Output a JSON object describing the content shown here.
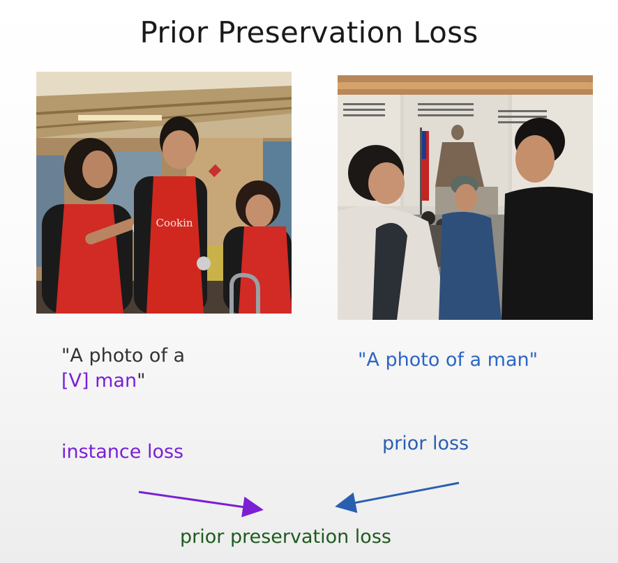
{
  "title": "Prior Preservation Loss",
  "left_caption": {
    "open_quote": "\"A photo of a",
    "token": "[V] man",
    "close_quote": "\""
  },
  "right_caption": "\"A photo of a man\"",
  "labels": {
    "instance_loss": "instance loss",
    "prior_loss": "prior loss",
    "prior_preservation_loss": "prior preservation loss"
  },
  "colors": {
    "instance": "#7a1fd6",
    "prior": "#2a5fb0",
    "result": "#1f5a1f"
  },
  "images": {
    "left": {
      "apron_text": "Cookin"
    }
  }
}
